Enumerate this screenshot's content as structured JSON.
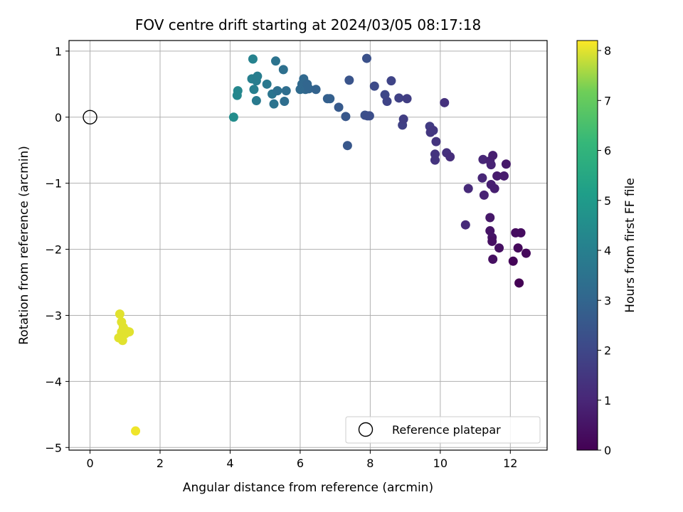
{
  "chart_data": {
    "type": "scatter",
    "title": "FOV centre drift starting at 2024/03/05 08:17:18",
    "xlabel": "Angular distance from reference (arcmin)",
    "ylabel": "Rotation from reference (arcmin)",
    "xlim": [
      -0.6,
      13.05
    ],
    "ylim": [
      -5.04,
      1.16
    ],
    "xticks": [
      0,
      2,
      4,
      6,
      8,
      10,
      12
    ],
    "yticks": [
      1,
      0,
      -1,
      -2,
      -3,
      -4,
      -5
    ],
    "grid": true,
    "legend": {
      "placement": "lower-right",
      "entries": [
        "Reference platepar"
      ]
    },
    "reference_point": {
      "x": 0,
      "y": 0,
      "label": "Reference platepar"
    },
    "colorbar": {
      "label": "Hours from first FF file",
      "range": [
        0,
        8.2
      ],
      "ticks": [
        0,
        1,
        2,
        3,
        4,
        5,
        6,
        7,
        8
      ],
      "colormap": "viridis"
    },
    "points": [
      {
        "x": 0.85,
        "y": -2.98,
        "h": 8.0
      },
      {
        "x": 0.9,
        "y": -3.1,
        "h": 8.0
      },
      {
        "x": 0.95,
        "y": -3.18,
        "h": 8.0
      },
      {
        "x": 0.9,
        "y": -3.25,
        "h": 8.0
      },
      {
        "x": 1.0,
        "y": -3.28,
        "h": 8.0
      },
      {
        "x": 1.05,
        "y": -3.24,
        "h": 8.0
      },
      {
        "x": 1.12,
        "y": -3.25,
        "h": 8.0
      },
      {
        "x": 0.82,
        "y": -3.34,
        "h": 8.0
      },
      {
        "x": 0.93,
        "y": -3.38,
        "h": 8.0
      },
      {
        "x": 1.3,
        "y": -4.75,
        "h": 8.1
      },
      {
        "x": 4.1,
        "y": 0.0,
        "h": 4.5
      },
      {
        "x": 4.2,
        "y": 0.33,
        "h": 4.3
      },
      {
        "x": 4.22,
        "y": 0.4,
        "h": 4.3
      },
      {
        "x": 4.65,
        "y": 0.88,
        "h": 4.1
      },
      {
        "x": 4.62,
        "y": 0.58,
        "h": 4.0
      },
      {
        "x": 4.68,
        "y": 0.42,
        "h": 4.0
      },
      {
        "x": 4.75,
        "y": 0.55,
        "h": 3.9
      },
      {
        "x": 4.78,
        "y": 0.62,
        "h": 3.9
      },
      {
        "x": 4.75,
        "y": 0.25,
        "h": 3.8
      },
      {
        "x": 5.05,
        "y": 0.5,
        "h": 3.7
      },
      {
        "x": 5.2,
        "y": 0.35,
        "h": 3.6
      },
      {
        "x": 5.25,
        "y": 0.2,
        "h": 3.5
      },
      {
        "x": 5.3,
        "y": 0.85,
        "h": 3.5
      },
      {
        "x": 5.35,
        "y": 0.4,
        "h": 3.4
      },
      {
        "x": 5.52,
        "y": 0.72,
        "h": 3.4
      },
      {
        "x": 5.55,
        "y": 0.24,
        "h": 3.3
      },
      {
        "x": 5.6,
        "y": 0.4,
        "h": 3.3
      },
      {
        "x": 6.0,
        "y": 0.42,
        "h": 3.2
      },
      {
        "x": 6.05,
        "y": 0.5,
        "h": 3.2
      },
      {
        "x": 6.08,
        "y": 0.48,
        "h": 3.1
      },
      {
        "x": 6.1,
        "y": 0.58,
        "h": 3.1
      },
      {
        "x": 6.15,
        "y": 0.42,
        "h": 3.1
      },
      {
        "x": 6.2,
        "y": 0.5,
        "h": 3.0
      },
      {
        "x": 6.25,
        "y": 0.43,
        "h": 3.0
      },
      {
        "x": 6.45,
        "y": 0.42,
        "h": 2.9
      },
      {
        "x": 6.78,
        "y": 0.28,
        "h": 2.8
      },
      {
        "x": 6.85,
        "y": 0.28,
        "h": 2.8
      },
      {
        "x": 7.1,
        "y": 0.15,
        "h": 2.6
      },
      {
        "x": 7.3,
        "y": 0.01,
        "h": 2.5
      },
      {
        "x": 7.35,
        "y": -0.43,
        "h": 2.5
      },
      {
        "x": 7.4,
        "y": 0.56,
        "h": 2.4
      },
      {
        "x": 7.85,
        "y": 0.03,
        "h": 2.3
      },
      {
        "x": 7.9,
        "y": 0.89,
        "h": 2.3
      },
      {
        "x": 7.92,
        "y": 0.02,
        "h": 2.2
      },
      {
        "x": 7.98,
        "y": 0.02,
        "h": 2.2
      },
      {
        "x": 8.12,
        "y": 0.47,
        "h": 2.1
      },
      {
        "x": 8.42,
        "y": 0.34,
        "h": 2.0
      },
      {
        "x": 8.48,
        "y": 0.24,
        "h": 1.9
      },
      {
        "x": 8.6,
        "y": 0.55,
        "h": 1.9
      },
      {
        "x": 8.82,
        "y": 0.29,
        "h": 1.8
      },
      {
        "x": 8.92,
        "y": -0.12,
        "h": 1.8
      },
      {
        "x": 8.95,
        "y": -0.03,
        "h": 1.7
      },
      {
        "x": 9.05,
        "y": 0.28,
        "h": 1.7
      },
      {
        "x": 9.7,
        "y": -0.14,
        "h": 1.6
      },
      {
        "x": 9.72,
        "y": -0.23,
        "h": 1.5
      },
      {
        "x": 9.8,
        "y": -0.2,
        "h": 1.5
      },
      {
        "x": 9.88,
        "y": -0.37,
        "h": 1.4
      },
      {
        "x": 9.85,
        "y": -0.56,
        "h": 1.4
      },
      {
        "x": 9.85,
        "y": -0.65,
        "h": 1.4
      },
      {
        "x": 10.12,
        "y": 0.22,
        "h": 1.3
      },
      {
        "x": 10.18,
        "y": -0.54,
        "h": 1.3
      },
      {
        "x": 10.28,
        "y": -0.6,
        "h": 1.2
      },
      {
        "x": 10.72,
        "y": -1.63,
        "h": 1.1
      },
      {
        "x": 10.8,
        "y": -1.08,
        "h": 1.1
      },
      {
        "x": 11.2,
        "y": -0.92,
        "h": 1.0
      },
      {
        "x": 11.22,
        "y": -0.64,
        "h": 1.0
      },
      {
        "x": 11.25,
        "y": -1.18,
        "h": 0.9
      },
      {
        "x": 11.42,
        "y": -0.66,
        "h": 0.9
      },
      {
        "x": 11.45,
        "y": -0.72,
        "h": 0.9
      },
      {
        "x": 11.5,
        "y": -0.58,
        "h": 0.8
      },
      {
        "x": 11.45,
        "y": -1.02,
        "h": 0.8
      },
      {
        "x": 11.55,
        "y": -1.08,
        "h": 0.8
      },
      {
        "x": 11.62,
        "y": -0.89,
        "h": 0.7
      },
      {
        "x": 11.82,
        "y": -0.89,
        "h": 0.7
      },
      {
        "x": 11.88,
        "y": -0.71,
        "h": 0.6
      },
      {
        "x": 11.42,
        "y": -1.52,
        "h": 0.6
      },
      {
        "x": 11.42,
        "y": -1.72,
        "h": 0.5
      },
      {
        "x": 11.48,
        "y": -1.82,
        "h": 0.5
      },
      {
        "x": 11.48,
        "y": -1.88,
        "h": 0.4
      },
      {
        "x": 11.68,
        "y": -1.98,
        "h": 0.4
      },
      {
        "x": 11.5,
        "y": -2.15,
        "h": 0.4
      },
      {
        "x": 12.15,
        "y": -1.75,
        "h": 0.3
      },
      {
        "x": 12.3,
        "y": -1.75,
        "h": 0.3
      },
      {
        "x": 12.22,
        "y": -1.98,
        "h": 0.2
      },
      {
        "x": 12.45,
        "y": -2.06,
        "h": 0.2
      },
      {
        "x": 12.08,
        "y": -2.18,
        "h": 0.1
      },
      {
        "x": 12.25,
        "y": -2.51,
        "h": 0.0
      }
    ]
  }
}
